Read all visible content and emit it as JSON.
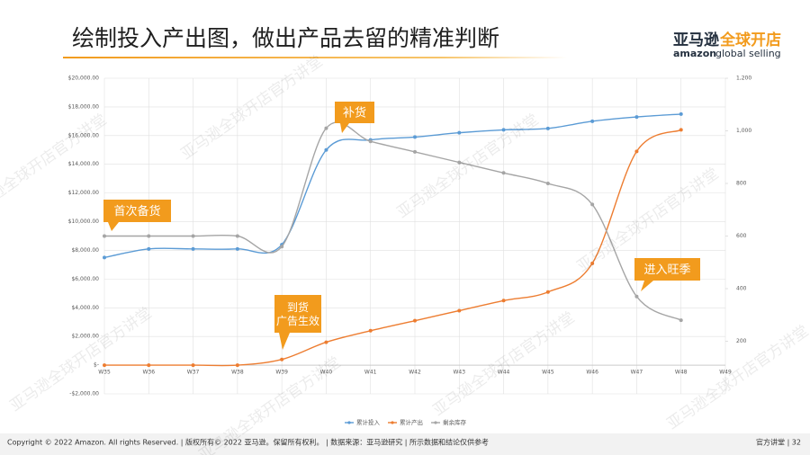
{
  "slide_title": "绘制投入产出图，做出产品去留的精准判断",
  "logo": {
    "cn1": "亚马逊",
    "cn2": "全球开店",
    "en1": "amazon",
    "en2": "global selling"
  },
  "watermark": "亚马逊全球开店官方讲堂",
  "footer": {
    "left": "Copyright © 2022 Amazon. All rights Reserved. | 版权所有© 2022 亚马逊。保留所有权利。 | 数据来源：亚马逊研究 | 所示数据和结论仅供参考",
    "right": "官方讲堂 | 32"
  },
  "chart_data": {
    "type": "line",
    "categories": [
      "W35",
      "W36",
      "W37",
      "W38",
      "W39",
      "W40",
      "W41",
      "W42",
      "W43",
      "W44",
      "W45",
      "W46",
      "W47",
      "W48",
      "W49"
    ],
    "series": [
      {
        "name": "累计投入",
        "color": "#5b9bd5",
        "values": [
          7500,
          8100,
          8100,
          8100,
          8400,
          15000,
          15700,
          15900,
          16200,
          16400,
          16500,
          17000,
          17300,
          17500,
          null
        ]
      },
      {
        "name": "累计产出",
        "color": "#ed7d31",
        "values": [
          0,
          0,
          0,
          0,
          400,
          1600,
          2400,
          3100,
          3800,
          4500,
          5100,
          7100,
          14900,
          16400,
          null
        ]
      },
      {
        "name": "剩余库存",
        "color": "#a5a5a5",
        "axis": "y2",
        "values": [
          600,
          600,
          600,
          600,
          560,
          1010,
          960,
          920,
          880,
          840,
          800,
          720,
          370,
          280,
          null
        ]
      }
    ],
    "ylim": [
      -2000,
      20000
    ],
    "yticks": [
      {
        "value": -2000,
        "label": "-$2,000.00"
      },
      {
        "value": 0,
        "label": "$-"
      },
      {
        "value": 2000,
        "label": "$2,000.00"
      },
      {
        "value": 4000,
        "label": "$4,000.00"
      },
      {
        "value": 6000,
        "label": "$6,000.00"
      },
      {
        "value": 8000,
        "label": "$8,000.00"
      },
      {
        "value": 10000,
        "label": "$10,000.00"
      },
      {
        "value": 12000,
        "label": "$12,000.00"
      },
      {
        "value": 14000,
        "label": "$14,000.00"
      },
      {
        "value": 16000,
        "label": "$16,000.00"
      },
      {
        "value": 18000,
        "label": "$18,000.00"
      },
      {
        "value": 20000,
        "label": "$20,000.00"
      }
    ],
    "y2lim": [
      0,
      1200
    ],
    "y2ticks": [
      200,
      400,
      600,
      800,
      {
        "value": 1000,
        "label": "1,000"
      },
      {
        "value": 1200,
        "label": "1,200"
      }
    ],
    "grid": true,
    "legend": "bottom",
    "annotations": [
      "补货",
      "首次备货",
      "到货\n广告生效",
      "进入旺季"
    ]
  }
}
